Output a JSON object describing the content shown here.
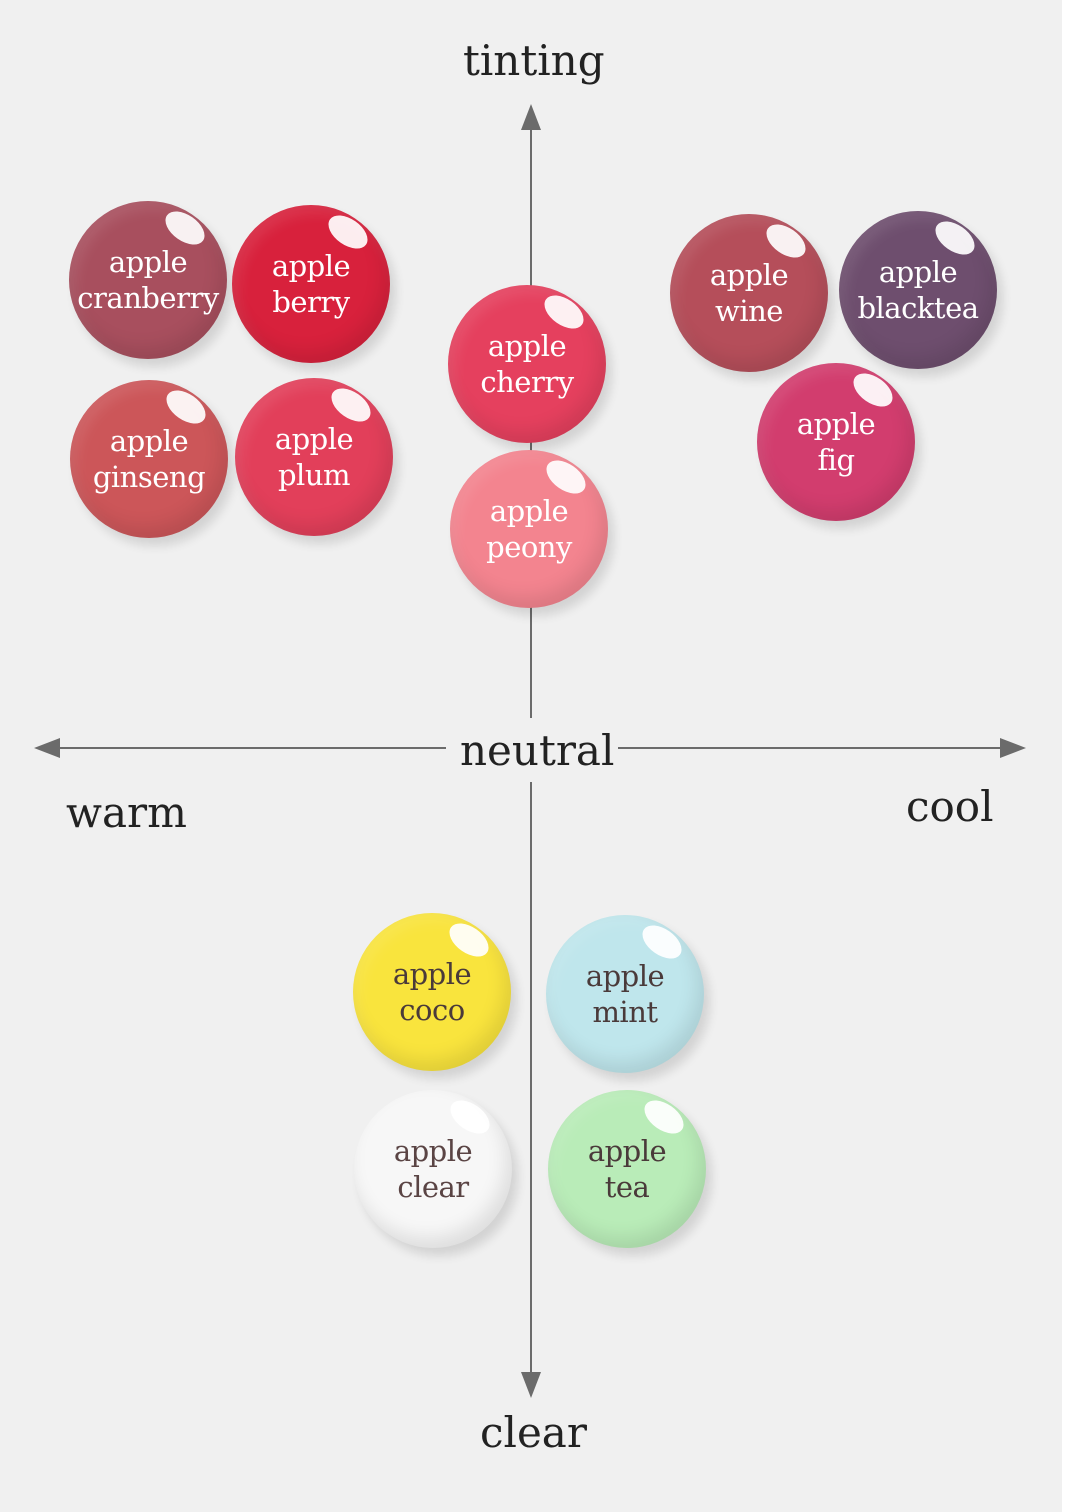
{
  "axes": {
    "top": "tinting",
    "bottom": "clear",
    "left": "warm",
    "right": "cool",
    "center": "neutral"
  },
  "swatches": [
    {
      "line1": "apple",
      "line2": "cranberry",
      "color": "#a84f5e",
      "text_color": "#ffffff"
    },
    {
      "line1": "apple",
      "line2": "berry",
      "color": "#d8213c",
      "text_color": "#ffffff"
    },
    {
      "line1": "apple",
      "line2": "ginseng",
      "color": "#cc5659",
      "text_color": "#ffffff"
    },
    {
      "line1": "apple",
      "line2": "plum",
      "color": "#e23f5a",
      "text_color": "#ffffff"
    },
    {
      "line1": "apple",
      "line2": "cherry",
      "color": "#e5405e",
      "text_color": "#ffffff"
    },
    {
      "line1": "apple",
      "line2": "peony",
      "color": "#f3848f",
      "text_color": "#ffffff"
    },
    {
      "line1": "apple",
      "line2": "wine",
      "color": "#b54e5a",
      "text_color": "#ffffff"
    },
    {
      "line1": "apple",
      "line2": "blacktea",
      "color": "#6e4e6e",
      "text_color": "#ffffff"
    },
    {
      "line1": "apple",
      "line2": "fig",
      "color": "#d23d6e",
      "text_color": "#ffffff"
    },
    {
      "line1": "apple",
      "line2": "coco",
      "color": "#f9e43d",
      "text_color": "#4a3a3a"
    },
    {
      "line1": "apple",
      "line2": "mint",
      "color": "#bfe6ec",
      "text_color": "#4a3a3a"
    },
    {
      "line1": "apple",
      "line2": "clear",
      "color": "#f7f7f7",
      "text_color": "#5a4444"
    },
    {
      "line1": "apple",
      "line2": "tea",
      "color": "#b9ecb8",
      "text_color": "#4a3a3a"
    }
  ]
}
